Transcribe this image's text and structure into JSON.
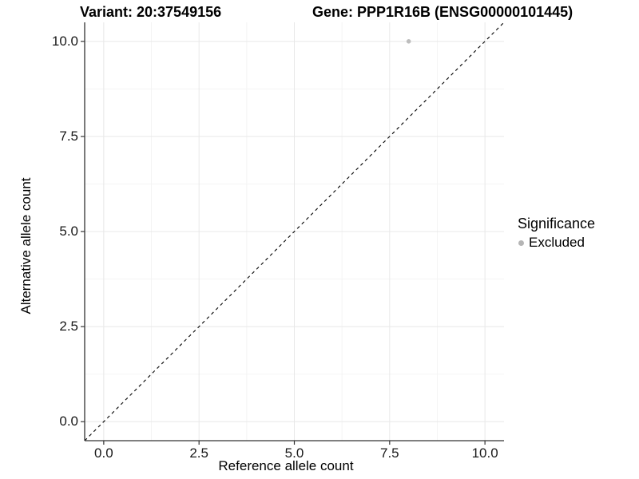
{
  "chart_data": {
    "type": "scatter",
    "titles": {
      "variant": "Variant: 20:37549156",
      "gene": "Gene: PPP1R16B (ENSG00000101445)"
    },
    "xlabel": "Reference allele count",
    "ylabel": "Alternative allele count",
    "xlim": [
      -0.5,
      10.5
    ],
    "ylim": [
      -0.5,
      10.5
    ],
    "xticks": {
      "values": [
        0,
        2.5,
        5,
        7.5,
        10
      ],
      "labels": [
        "0.0",
        "2.5",
        "5.0",
        "7.5",
        "10.0"
      ]
    },
    "yticks": {
      "values": [
        0,
        2.5,
        5,
        7.5,
        10
      ],
      "labels": [
        "0.0",
        "2.5",
        "5.0",
        "7.5",
        "10.0"
      ]
    },
    "minor_breaks": [
      1.25,
      3.75,
      6.25,
      8.75
    ],
    "grid": "major+minor",
    "series": [
      {
        "name": "Excluded",
        "color": "#bdbdbd",
        "point_radius": 2.8,
        "points": [
          {
            "x": 8,
            "y": 10
          }
        ]
      }
    ],
    "reference_line": {
      "type": "identity",
      "slope": 1,
      "intercept": 0,
      "style": "dashed",
      "color": "#000000"
    },
    "legend": {
      "title": "Significance",
      "position": "right",
      "entries": [
        {
          "label": "Excluded",
          "color": "#b5b5b5"
        }
      ]
    },
    "colors": {
      "background": "#ffffff",
      "grid_major": "#e8e8e8",
      "grid_minor": "#f4f4f4",
      "axis_line": "#333333",
      "tick_mark": "#333333",
      "text": "#000000"
    }
  }
}
